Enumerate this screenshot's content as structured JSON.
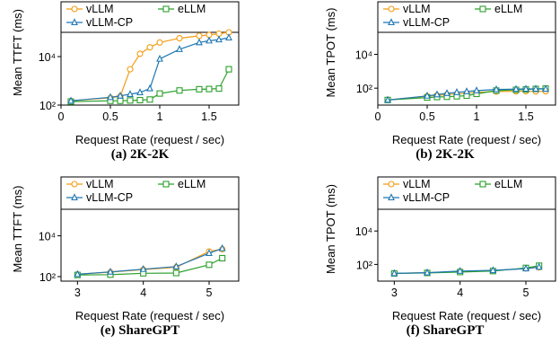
{
  "colors": {
    "vllm": "#f39c12",
    "ellm": "#2ca02c",
    "vllm_cp": "#1f77b4",
    "axis": "#000000"
  },
  "legend": [
    {
      "key": "vllm",
      "label": "vLLM",
      "marker": "circle"
    },
    {
      "key": "ellm",
      "label": "eLLM",
      "marker": "square"
    },
    {
      "key": "vllm_cp",
      "label": "vLLM-CP",
      "marker": "triangle"
    }
  ],
  "chart_data": [
    {
      "id": "a",
      "type": "line",
      "caption": "(a) 2K-2K",
      "xlabel": "Request Rate (request / sec)",
      "ylabel": "Mean TTFT (ms)",
      "yscale": "log",
      "xlim": [
        0,
        1.8
      ],
      "ylim": [
        100,
        100000
      ],
      "xticks": [
        0,
        0.5,
        1.0,
        1.5
      ],
      "xtick_labels": [
        "0",
        "0.5",
        "1",
        "1.5"
      ],
      "yticks": [
        100,
        10000
      ],
      "ytick_labels": [
        "10²",
        "10⁴"
      ],
      "series": [
        {
          "key": "vllm",
          "name": "vLLM",
          "x": [
            0.1,
            0.5,
            0.6,
            0.7,
            0.8,
            0.9,
            1.0,
            1.2,
            1.4,
            1.5,
            1.6,
            1.7
          ],
          "y": [
            150,
            200,
            230,
            3000,
            13000,
            24000,
            38000,
            57000,
            72000,
            78000,
            88000,
            100000
          ]
        },
        {
          "key": "ellm",
          "name": "eLLM",
          "x": [
            0.1,
            0.5,
            0.6,
            0.7,
            0.8,
            0.9,
            1.0,
            1.2,
            1.4,
            1.5,
            1.6,
            1.7
          ],
          "y": [
            140,
            150,
            150,
            155,
            160,
            170,
            300,
            400,
            450,
            460,
            480,
            3000
          ]
        },
        {
          "key": "vllm_cp",
          "name": "vLLM-CP",
          "x": [
            0.1,
            0.5,
            0.6,
            0.7,
            0.8,
            0.9,
            1.0,
            1.2,
            1.4,
            1.5,
            1.6,
            1.7
          ],
          "y": [
            150,
            210,
            240,
            280,
            330,
            480,
            8000,
            20000,
            38000,
            45000,
            50000,
            60000
          ]
        }
      ]
    },
    {
      "id": "b",
      "type": "line",
      "caption": "(b) 2K-2K",
      "xlabel": "Request Rate (request / sec)",
      "ylabel": "Mean TPOT (ms)",
      "yscale": "log",
      "xlim": [
        0,
        1.8
      ],
      "ylim": [
        10,
        200000
      ],
      "xticks": [
        0,
        0.5,
        1.0,
        1.5
      ],
      "xtick_labels": [
        "0",
        "0.5",
        "1",
        "1.5"
      ],
      "yticks": [
        100,
        10000
      ],
      "ytick_labels": [
        "10²",
        "10⁴"
      ],
      "series": [
        {
          "key": "vllm",
          "name": "vLLM",
          "x": [
            0.1,
            0.5,
            0.6,
            0.7,
            0.8,
            0.9,
            1.0,
            1.2,
            1.4,
            1.5,
            1.6,
            1.7
          ],
          "y": [
            20,
            34,
            38,
            42,
            46,
            50,
            56,
            63,
            65,
            66,
            64,
            66
          ]
        },
        {
          "key": "ellm",
          "name": "eLLM",
          "x": [
            0.1,
            0.5,
            0.6,
            0.7,
            0.8,
            0.9,
            1.0,
            1.2,
            1.4,
            1.5,
            1.6,
            1.7
          ],
          "y": [
            20,
            28,
            30,
            31,
            33,
            36,
            46,
            72,
            80,
            84,
            90,
            95
          ]
        },
        {
          "key": "vllm_cp",
          "name": "vLLM-CP",
          "x": [
            0.1,
            0.5,
            0.6,
            0.7,
            0.8,
            0.9,
            1.0,
            1.2,
            1.4,
            1.5,
            1.6,
            1.7
          ],
          "y": [
            20,
            35,
            42,
            50,
            57,
            64,
            72,
            84,
            88,
            90,
            90,
            90
          ]
        }
      ]
    },
    {
      "id": "e",
      "type": "line",
      "caption": "(e) ShareGPT",
      "xlabel": "Request Rate (request / sec)",
      "ylabel": "Mean TTFT (ms)",
      "yscale": "log",
      "xlim": [
        2.75,
        5.45
      ],
      "ylim": [
        60,
        200000
      ],
      "xticks": [
        3,
        4,
        5
      ],
      "xtick_labels": [
        "3",
        "4",
        "5"
      ],
      "yticks": [
        100,
        10000
      ],
      "ytick_labels": [
        "10²",
        "10⁴"
      ],
      "series": [
        {
          "key": "vllm",
          "name": "vLLM",
          "x": [
            3,
            3.5,
            4,
            4.5,
            5,
            5.2
          ],
          "y": [
            130,
            165,
            220,
            290,
            1700,
            2200
          ]
        },
        {
          "key": "ellm",
          "name": "eLLM",
          "x": [
            3,
            3.5,
            4,
            4.5,
            5,
            5.2
          ],
          "y": [
            120,
            125,
            145,
            150,
            380,
            800
          ]
        },
        {
          "key": "vllm_cp",
          "name": "vLLM-CP",
          "x": [
            3,
            3.5,
            4,
            4.5,
            5,
            5.2
          ],
          "y": [
            130,
            170,
            230,
            310,
            1400,
            2400
          ]
        }
      ]
    },
    {
      "id": "f",
      "type": "line",
      "caption": "(f) ShareGPT",
      "xlabel": "Request Rate (request / sec)",
      "ylabel": "Mean TPOT (ms)",
      "yscale": "log",
      "xlim": [
        2.75,
        5.45
      ],
      "ylim": [
        10,
        200000
      ],
      "xticks": [
        3,
        4,
        5
      ],
      "xtick_labels": [
        "3",
        "4",
        "5"
      ],
      "yticks": [
        100,
        10000
      ],
      "ytick_labels": [
        "10²",
        "10⁴"
      ],
      "series": [
        {
          "key": "vllm",
          "name": "vLLM",
          "x": [
            3,
            3.5,
            4,
            4.5,
            5,
            5.2
          ],
          "y": [
            29,
            32,
            38,
            42,
            58,
            66
          ]
        },
        {
          "key": "ellm",
          "name": "eLLM",
          "x": [
            3,
            3.5,
            4,
            4.5,
            5,
            5.2
          ],
          "y": [
            29,
            31,
            35,
            40,
            62,
            84
          ]
        },
        {
          "key": "vllm_cp",
          "name": "vLLM-CP",
          "x": [
            3,
            3.5,
            4,
            4.5,
            5,
            5.2
          ],
          "y": [
            29,
            32,
            40,
            44,
            56,
            70
          ]
        }
      ]
    }
  ]
}
